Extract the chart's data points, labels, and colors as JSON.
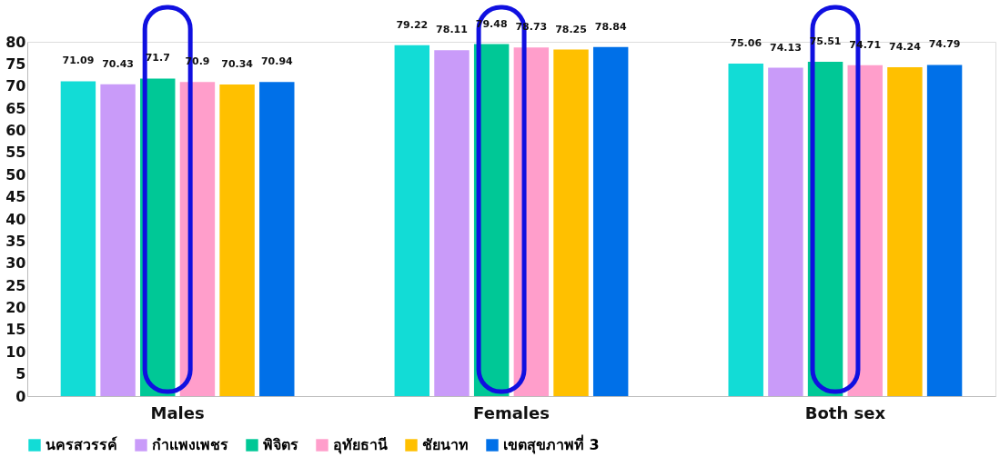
{
  "chart_data": {
    "type": "bar",
    "categories": [
      "Males",
      "Females",
      "Both sex"
    ],
    "series": [
      {
        "name": "นครสวรรค์",
        "color": "#12dcd6",
        "values": [
          71.09,
          79.22,
          75.06
        ]
      },
      {
        "name": "กำแพงเพชร",
        "color": "#c99bf9",
        "values": [
          70.43,
          78.11,
          74.13
        ]
      },
      {
        "name": "พิจิตร",
        "color": "#00c896",
        "values": [
          71.7,
          79.48,
          75.51
        ]
      },
      {
        "name": "อุทัยธานี",
        "color": "#ff9ecb",
        "values": [
          70.9,
          78.73,
          74.71
        ]
      },
      {
        "name": "ชัยนาท",
        "color": "#ffc000",
        "values": [
          70.34,
          78.25,
          74.24
        ]
      },
      {
        "name": "เขตสุขภาพที่ 3",
        "color": "#0070e8",
        "values": [
          70.94,
          78.84,
          74.79
        ]
      }
    ],
    "ylim": [
      0,
      80
    ],
    "yticks": [
      0,
      5,
      10,
      15,
      20,
      25,
      30,
      35,
      40,
      45,
      50,
      55,
      60,
      65,
      70,
      75,
      80
    ],
    "grid": false,
    "legend": "bottom",
    "data_labels": true
  }
}
